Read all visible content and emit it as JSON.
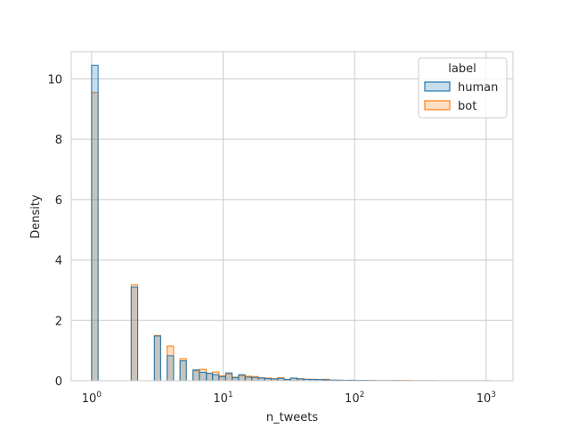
{
  "chart_data": {
    "type": "histogram",
    "title": "",
    "xlabel": "n_tweets",
    "ylabel": "Density",
    "xscale": "log",
    "xlim": [
      0.7,
      1600
    ],
    "ylim": [
      0,
      10.9
    ],
    "grid": true,
    "x_ticks": [
      {
        "value": 1,
        "base": "10",
        "exp": "0"
      },
      {
        "value": 10,
        "base": "10",
        "exp": "1"
      },
      {
        "value": 100,
        "base": "10",
        "exp": "2"
      },
      {
        "value": 1000,
        "base": "10",
        "exp": "3"
      }
    ],
    "y_ticks": [
      0,
      2,
      4,
      6,
      8,
      10
    ],
    "legend": {
      "title": "label",
      "placement": "upper right",
      "entries": [
        {
          "name": "human",
          "edge": "#1f77b4",
          "fill": "#1f77b4"
        },
        {
          "name": "bot",
          "edge": "#ff7f0e",
          "fill": "#ff7f0e"
        }
      ]
    },
    "series": [
      {
        "name": "human",
        "bins": [
          {
            "x0": 1.0,
            "x1": 1.12,
            "density": 10.45
          },
          {
            "x0": 2.0,
            "x1": 2.24,
            "density": 3.1
          },
          {
            "x0": 3.0,
            "x1": 3.35,
            "density": 1.48
          },
          {
            "x0": 3.75,
            "x1": 4.2,
            "density": 0.83
          },
          {
            "x0": 4.7,
            "x1": 5.25,
            "density": 0.66
          },
          {
            "x0": 5.9,
            "x1": 6.6,
            "density": 0.36
          },
          {
            "x0": 6.6,
            "x1": 7.45,
            "density": 0.28
          },
          {
            "x0": 7.45,
            "x1": 8.3,
            "density": 0.25
          },
          {
            "x0": 8.3,
            "x1": 9.3,
            "density": 0.2
          },
          {
            "x0": 9.3,
            "x1": 10.45,
            "density": 0.14
          },
          {
            "x0": 10.45,
            "x1": 11.7,
            "density": 0.26
          },
          {
            "x0": 11.7,
            "x1": 13.1,
            "density": 0.1
          },
          {
            "x0": 13.1,
            "x1": 14.7,
            "density": 0.2
          },
          {
            "x0": 14.7,
            "x1": 16.5,
            "density": 0.12
          },
          {
            "x0": 16.5,
            "x1": 18.5,
            "density": 0.11
          },
          {
            "x0": 18.5,
            "x1": 20.7,
            "density": 0.09
          },
          {
            "x0": 20.7,
            "x1": 23.2,
            "density": 0.07
          },
          {
            "x0": 23.2,
            "x1": 26.0,
            "density": 0.06
          },
          {
            "x0": 26.0,
            "x1": 29.1,
            "density": 0.08
          },
          {
            "x0": 29.1,
            "x1": 32.6,
            "density": 0.04
          },
          {
            "x0": 32.6,
            "x1": 36.5,
            "density": 0.09
          },
          {
            "x0": 36.5,
            "x1": 40.9,
            "density": 0.06
          },
          {
            "x0": 40.9,
            "x1": 45.8,
            "density": 0.05
          },
          {
            "x0": 45.8,
            "x1": 51.3,
            "density": 0.04
          },
          {
            "x0": 51.3,
            "x1": 57.5,
            "density": 0.04
          },
          {
            "x0": 57.5,
            "x1": 64.4,
            "density": 0.03
          },
          {
            "x0": 64.4,
            "x1": 72.1,
            "density": 0.02
          },
          {
            "x0": 72.1,
            "x1": 80.8,
            "density": 0.02
          },
          {
            "x0": 80.8,
            "x1": 90.5,
            "density": 0.015
          },
          {
            "x0": 90.5,
            "x1": 101.4,
            "density": 0.015
          },
          {
            "x0": 101.4,
            "x1": 113.5,
            "density": 0.01
          },
          {
            "x0": 113.5,
            "x1": 127.2,
            "density": 0.012
          },
          {
            "x0": 127.2,
            "x1": 142.5,
            "density": 0.008
          },
          {
            "x0": 142.5,
            "x1": 200,
            "density": 0.005
          },
          {
            "x0": 200,
            "x1": 400,
            "density": 0.003
          },
          {
            "x0": 400,
            "x1": 1100,
            "density": 0.002
          }
        ]
      },
      {
        "name": "bot",
        "bins": [
          {
            "x0": 1.0,
            "x1": 1.12,
            "density": 9.55
          },
          {
            "x0": 2.0,
            "x1": 2.24,
            "density": 3.18
          },
          {
            "x0": 3.0,
            "x1": 3.35,
            "density": 1.5
          },
          {
            "x0": 3.75,
            "x1": 4.2,
            "density": 1.15
          },
          {
            "x0": 4.7,
            "x1": 5.25,
            "density": 0.73
          },
          {
            "x0": 5.9,
            "x1": 6.6,
            "density": 0.33
          },
          {
            "x0": 6.6,
            "x1": 7.45,
            "density": 0.38
          },
          {
            "x0": 7.45,
            "x1": 8.3,
            "density": 0.24
          },
          {
            "x0": 8.3,
            "x1": 9.3,
            "density": 0.29
          },
          {
            "x0": 9.3,
            "x1": 10.45,
            "density": 0.16
          },
          {
            "x0": 10.45,
            "x1": 11.7,
            "density": 0.22
          },
          {
            "x0": 11.7,
            "x1": 13.1,
            "density": 0.12
          },
          {
            "x0": 13.1,
            "x1": 14.7,
            "density": 0.17
          },
          {
            "x0": 14.7,
            "x1": 16.5,
            "density": 0.15
          },
          {
            "x0": 16.5,
            "x1": 18.5,
            "density": 0.14
          },
          {
            "x0": 18.5,
            "x1": 20.7,
            "density": 0.1
          },
          {
            "x0": 20.7,
            "x1": 23.2,
            "density": 0.09
          },
          {
            "x0": 23.2,
            "x1": 26.0,
            "density": 0.07
          },
          {
            "x0": 26.0,
            "x1": 29.1,
            "density": 0.1
          },
          {
            "x0": 29.1,
            "x1": 32.6,
            "density": 0.05
          },
          {
            "x0": 32.6,
            "x1": 36.5,
            "density": 0.08
          },
          {
            "x0": 36.5,
            "x1": 40.9,
            "density": 0.07
          },
          {
            "x0": 40.9,
            "x1": 45.8,
            "density": 0.05
          },
          {
            "x0": 45.8,
            "x1": 51.3,
            "density": 0.05
          },
          {
            "x0": 51.3,
            "x1": 57.5,
            "density": 0.04
          },
          {
            "x0": 57.5,
            "x1": 64.4,
            "density": 0.05
          },
          {
            "x0": 64.4,
            "x1": 72.1,
            "density": 0.02
          },
          {
            "x0": 72.1,
            "x1": 80.8,
            "density": 0.02
          },
          {
            "x0": 80.8,
            "x1": 90.5,
            "density": 0.015
          },
          {
            "x0": 90.5,
            "x1": 101.4,
            "density": 0.02
          },
          {
            "x0": 101.4,
            "x1": 113.5,
            "density": 0.01
          },
          {
            "x0": 113.5,
            "x1": 127.2,
            "density": 0.01
          },
          {
            "x0": 127.2,
            "x1": 142.5,
            "density": 0.008
          },
          {
            "x0": 142.5,
            "x1": 200,
            "density": 0.006
          },
          {
            "x0": 200,
            "x1": 260,
            "density": 0.01
          },
          {
            "x0": 260,
            "x1": 400,
            "density": 0.004
          },
          {
            "x0": 400,
            "x1": 1100,
            "density": 0.002
          }
        ]
      }
    ]
  }
}
